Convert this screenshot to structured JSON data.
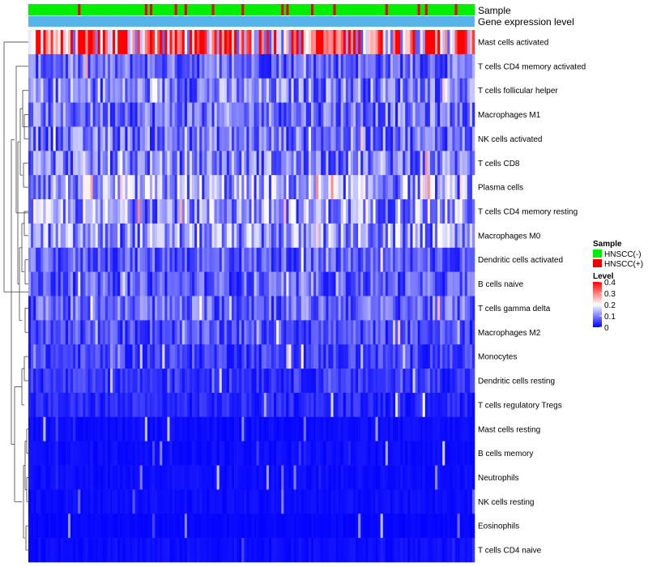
{
  "chart_data": {
    "type": "heatmap",
    "title": "",
    "annotation_tracks": [
      "Sample",
      "Gene expression level"
    ],
    "rows": [
      {
        "label": "Mast cells activated",
        "mean": 0.3
      },
      {
        "label": "T cells CD4 memory activated",
        "mean": 0.08
      },
      {
        "label": "T cells follicular helper",
        "mean": 0.1
      },
      {
        "label": "Macrophages M1",
        "mean": 0.09
      },
      {
        "label": "NK cells activated",
        "mean": 0.09
      },
      {
        "label": "T cells CD8",
        "mean": 0.1
      },
      {
        "label": "Plasma cells",
        "mean": 0.12
      },
      {
        "label": "T cells CD4 memory resting",
        "mean": 0.12
      },
      {
        "label": "Macrophages M0",
        "mean": 0.11
      },
      {
        "label": "Dendritic cells activated",
        "mean": 0.07
      },
      {
        "label": "B cells naive",
        "mean": 0.07
      },
      {
        "label": "T cells gamma delta",
        "mean": 0.08
      },
      {
        "label": "Macrophages M2",
        "mean": 0.06
      },
      {
        "label": "Monocytes",
        "mean": 0.05
      },
      {
        "label": "Dendritic cells resting",
        "mean": 0.04
      },
      {
        "label": "T cells regulatory  Tregs",
        "mean": 0.03
      },
      {
        "label": "Mast cells resting",
        "mean": 0.01
      },
      {
        "label": "B cells memory",
        "mean": 0.01
      },
      {
        "label": "Neutrophils",
        "mean": 0.01
      },
      {
        "label": "NK cells resting",
        "mean": 0.01
      },
      {
        "label": "Eosinophils",
        "mean": 0.005
      },
      {
        "label": "T cells CD4 naive",
        "mean": 0.01
      }
    ],
    "column_count": 180,
    "sample_groups": [
      {
        "name": "HNSCC(-)",
        "color": "#00ee00"
      },
      {
        "name": "HNSCC(+)",
        "color": "#ee0000"
      }
    ],
    "gene_expression_color": "#56b4e9",
    "color_scale": {
      "min": 0,
      "max": 0.4,
      "low": "#0000ff",
      "mid": "#ffffff",
      "high": "#ff0000"
    },
    "legend": {
      "sample_title": "Sample",
      "level_title": "Level",
      "level_ticks": [
        "0.4",
        "0.3",
        "0.2",
        "0.1",
        "0"
      ]
    }
  }
}
